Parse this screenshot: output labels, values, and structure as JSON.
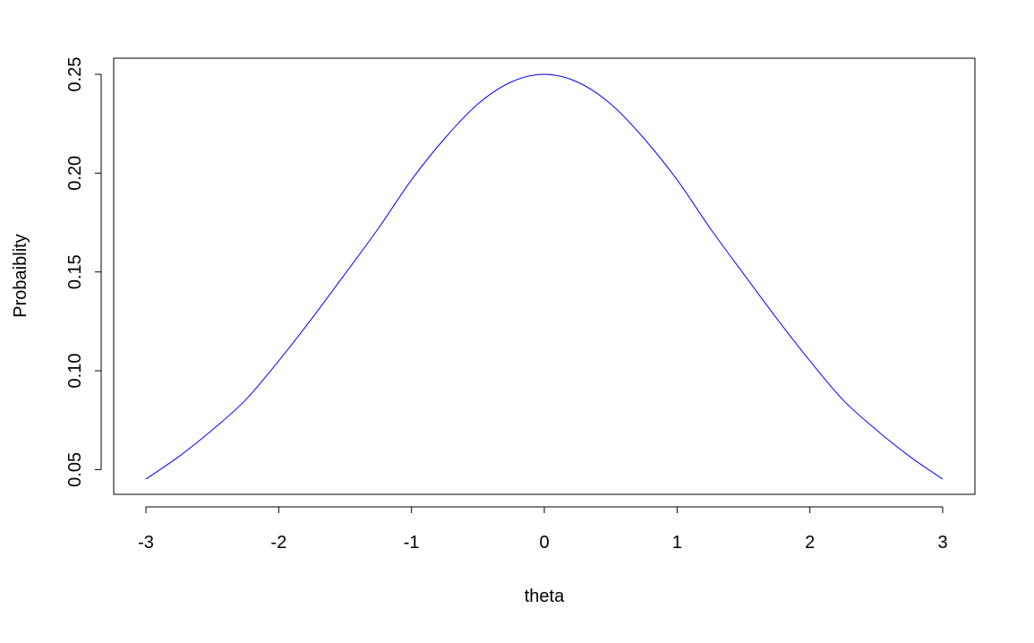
{
  "chart_data": {
    "type": "line",
    "title": "",
    "xlabel": "theta",
    "ylabel": "Probaiblity",
    "xlim": [
      -3,
      3
    ],
    "ylim": [
      0.0451766,
      0.25
    ],
    "x_ticks": [
      -3,
      -2,
      -1,
      0,
      1,
      2,
      3
    ],
    "x_tick_labels": [
      "-3",
      "-2",
      "-1",
      "0",
      "1",
      "2",
      "3"
    ],
    "y_ticks": [
      0.05,
      0.1,
      0.15,
      0.2,
      0.25
    ],
    "y_tick_labels": [
      "0.05",
      "0.10",
      "0.15",
      "0.20",
      "0.25"
    ],
    "grid": false,
    "legend": "none",
    "series": [
      {
        "color": "#0000ff",
        "x": [
          -3,
          -2.75,
          -2.5,
          -2.25,
          -2,
          -1.75,
          -1.5,
          -1.25,
          -1,
          -0.75,
          -0.5,
          -0.25,
          0,
          0.25,
          0.5,
          0.75,
          1,
          1.25,
          1.5,
          1.75,
          2,
          2.25,
          2.5,
          2.75,
          3
        ],
        "y": [
          0.0452,
          0.0567,
          0.0701,
          0.0852,
          0.105,
          0.1265,
          0.1491,
          0.172,
          0.1966,
          0.2176,
          0.235,
          0.2461,
          0.25,
          0.2461,
          0.235,
          0.2176,
          0.1966,
          0.172,
          0.1491,
          0.1265,
          0.105,
          0.0852,
          0.0701,
          0.0567,
          0.0452
        ]
      }
    ]
  }
}
